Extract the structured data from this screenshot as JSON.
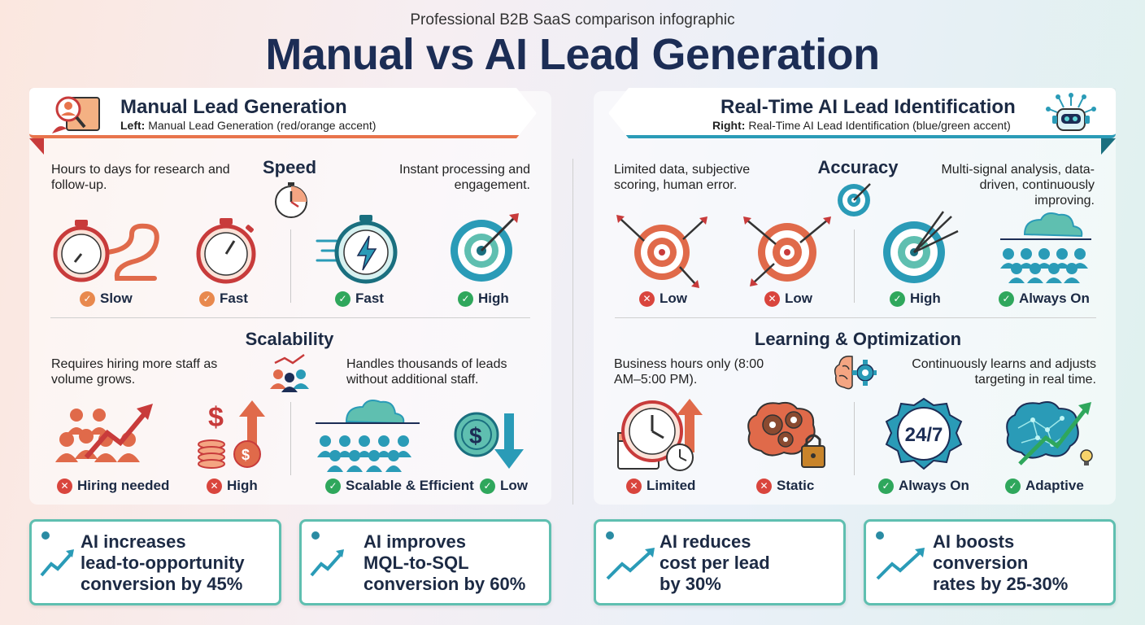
{
  "header": {
    "subtitle": "Professional B2B SaaS comparison infographic",
    "title": "Manual vs AI Lead Generation"
  },
  "left": {
    "banner_title": "Manual Lead Generation",
    "banner_sub_bold": "Left:",
    "banner_sub": "Manual Lead Generation (red/orange accent)",
    "speed": {
      "title": "Speed",
      "desc_left": "Hours to days for research and follow-up.",
      "desc_right": "Instant processing and engagement.",
      "items": [
        {
          "label": "Slow",
          "status": "orange"
        },
        {
          "label": "Fast",
          "status": "orange"
        },
        {
          "label": "Fast",
          "status": "green"
        },
        {
          "label": "High",
          "status": "green"
        }
      ]
    },
    "scalability": {
      "title": "Scalability",
      "desc_left": "Requires hiring more staff as volume grows.",
      "desc_right": "Handles thousands of leads without additional staff.",
      "items": [
        {
          "label": "Hiring needed",
          "status": "red"
        },
        {
          "label": "High",
          "status": "red"
        },
        {
          "label": "Scalable & Efficient",
          "status": "green"
        },
        {
          "label": "Low",
          "status": "green"
        }
      ]
    }
  },
  "right": {
    "banner_title": "Real-Time AI Lead Identification",
    "banner_sub_bold": "Right:",
    "banner_sub": "Real-Time AI Lead Identification (blue/green accent)",
    "accuracy": {
      "title": "Accuracy",
      "desc_left": "Limited data, subjective scoring, human error.",
      "desc_right": "Multi-signal analysis, data-driven, continuously improving.",
      "items": [
        {
          "label": "Low",
          "status": "red"
        },
        {
          "label": "Low",
          "status": "red"
        },
        {
          "label": "High",
          "status": "green"
        },
        {
          "label": "Always On",
          "status": "green"
        }
      ]
    },
    "learning": {
      "title": "Learning & Optimization",
      "desc_left": "Business hours only (8:00 AM–5:00 PM).",
      "desc_right": "Continuously learns and adjusts targeting in real time.",
      "badge_247": "24/7",
      "items": [
        {
          "label": "Limited",
          "status": "red"
        },
        {
          "label": "Static",
          "status": "red"
        },
        {
          "label": "Always On",
          "status": "green"
        },
        {
          "label": "Adaptive",
          "status": "green"
        }
      ]
    }
  },
  "stats": [
    {
      "line1": "AI increases",
      "line2": "lead-to-opportunity",
      "line3": "conversion by 45%"
    },
    {
      "line1": "AI improves",
      "line2": "MQL-to-SQL",
      "line3": "conversion by 60%"
    },
    {
      "line1": "AI reduces",
      "line2": "cost per lead",
      "line3": "by 30%"
    },
    {
      "line1": "AI boosts",
      "line2": "conversion",
      "line3": "rates by 25-30%"
    }
  ],
  "colors": {
    "manual_accent": "#e8744c",
    "ai_accent": "#2a9bb7",
    "title": "#1c2d55",
    "green": "#2fa75c",
    "red": "#d9453d",
    "orange": "#e8894e"
  }
}
